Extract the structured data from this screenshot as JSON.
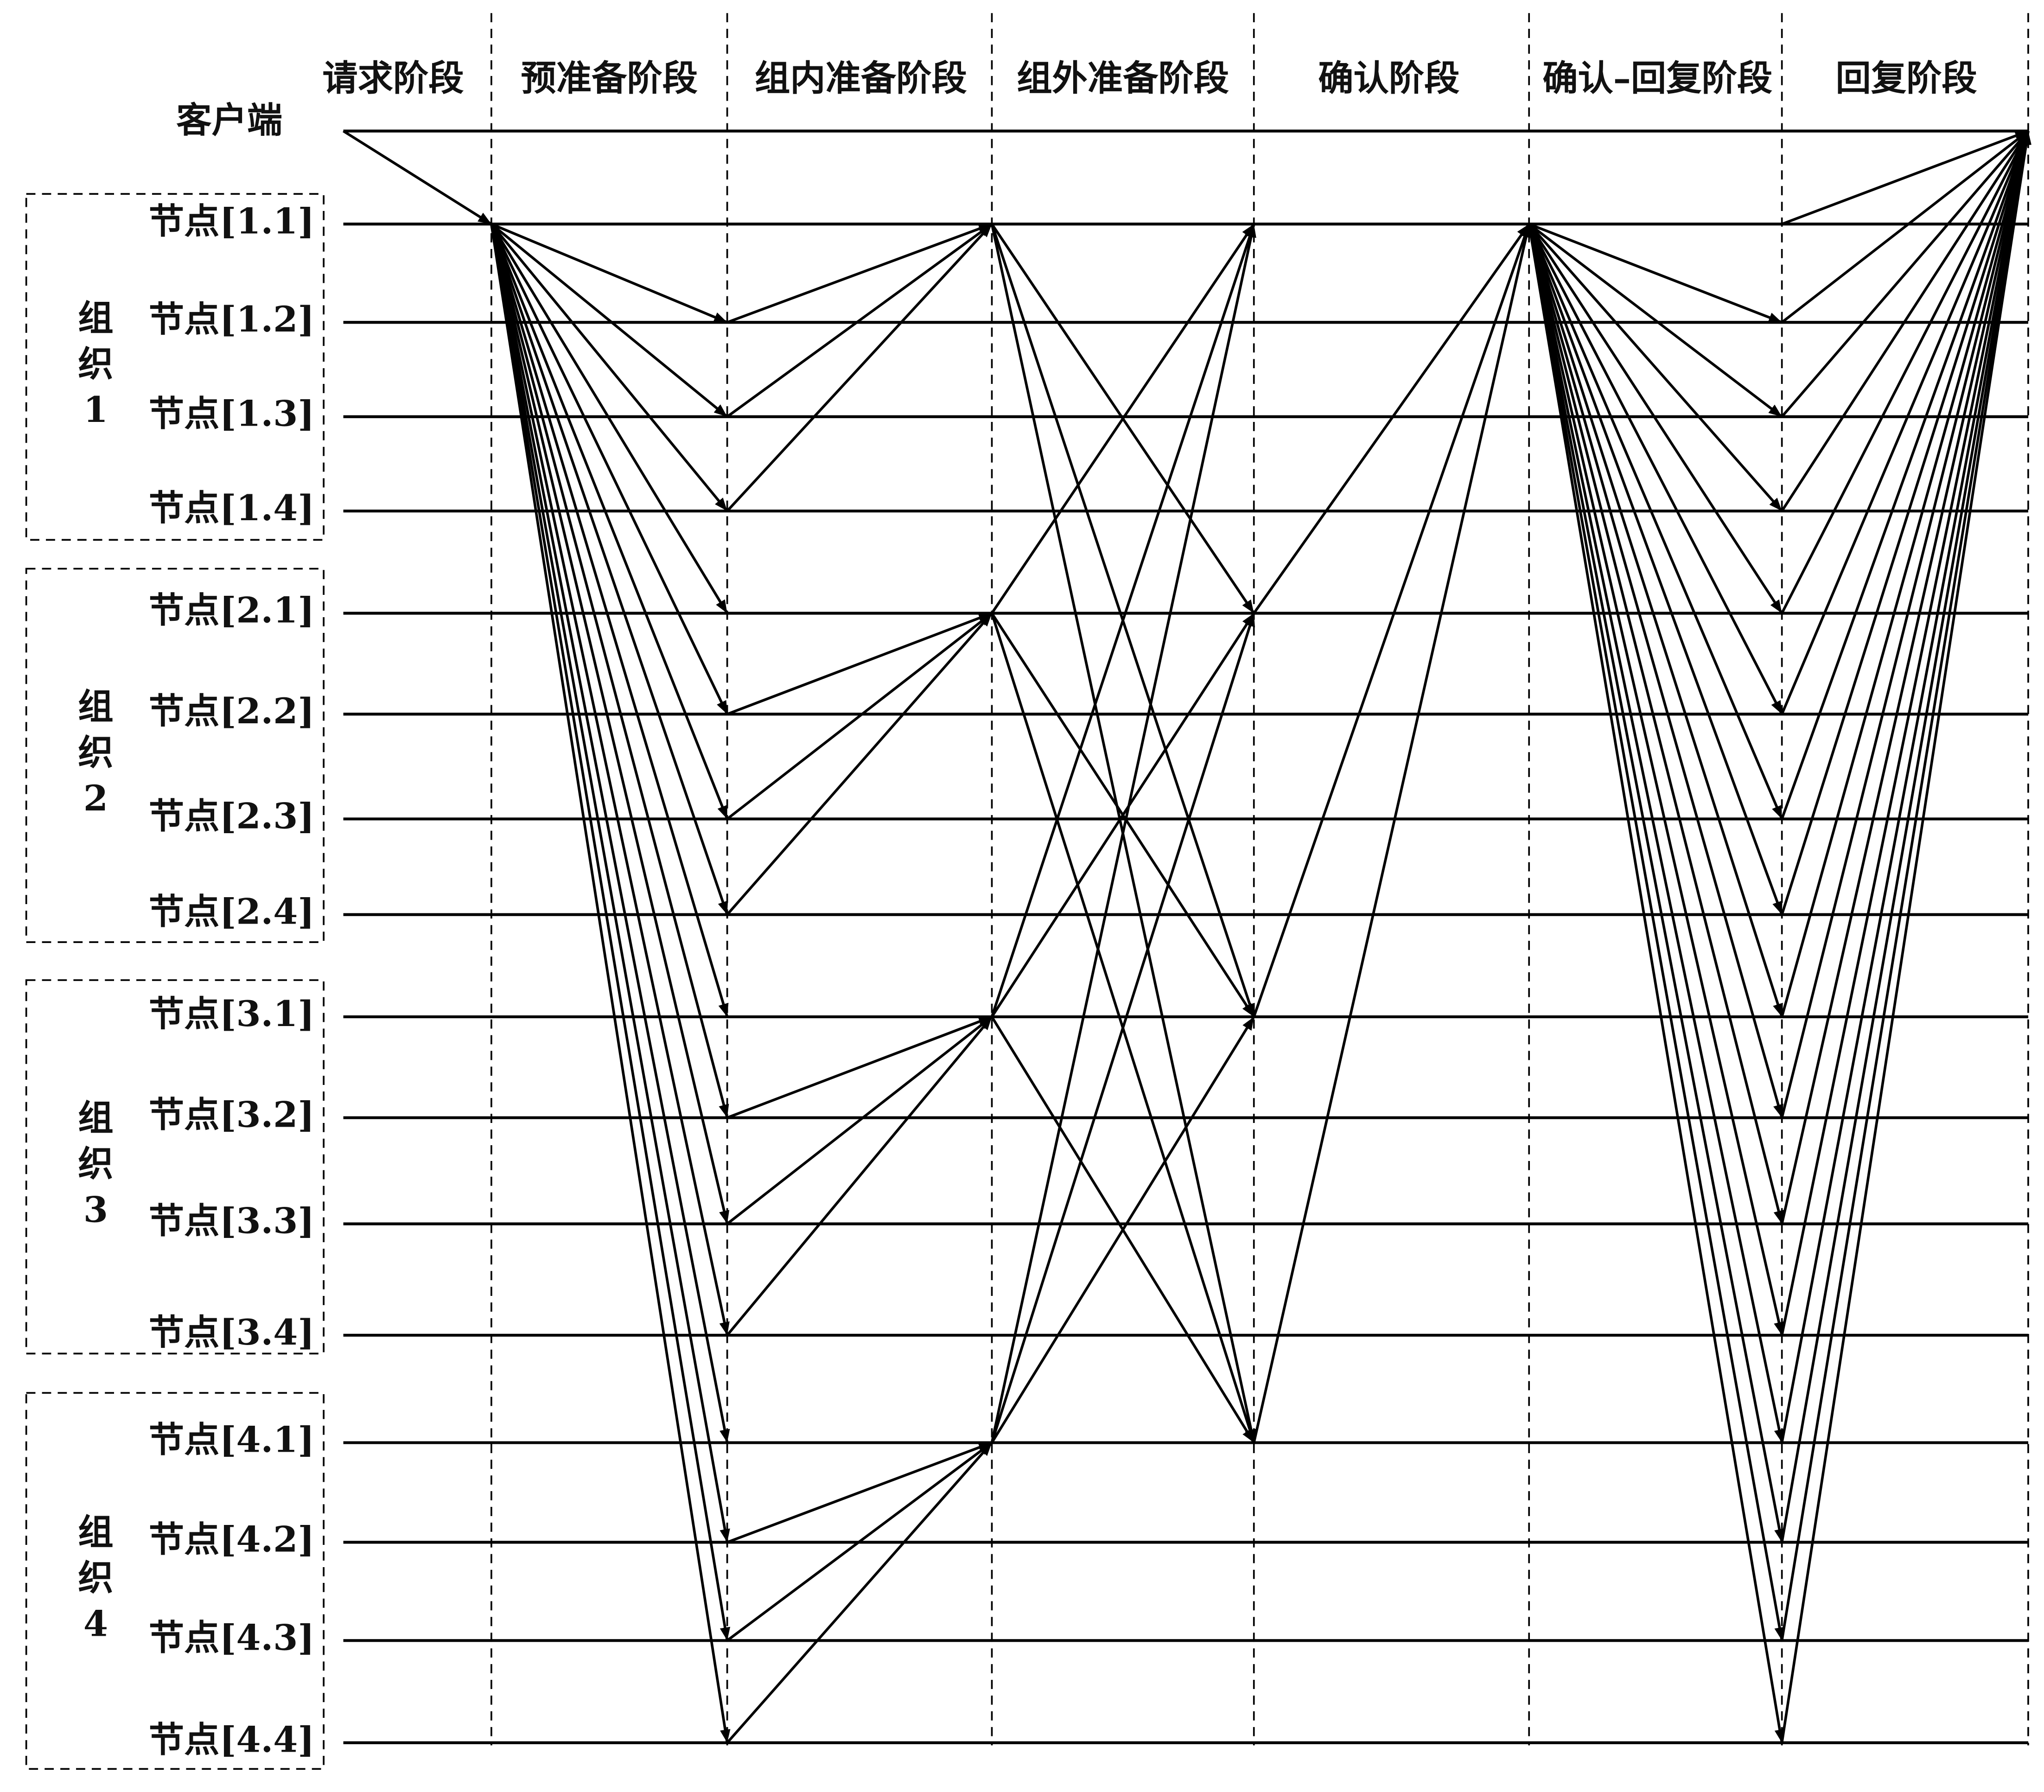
{
  "phases": [
    "请求阶段",
    "预准备阶段",
    "组内准备阶段",
    "组外准备阶段",
    "确认阶段",
    "确认–回复阶段",
    "回复阶段"
  ],
  "client": "客户端",
  "groups": [
    {
      "label": "组织1",
      "nodes": [
        "节点[1.1]",
        "节点[1.2]",
        "节点[1.3]",
        "节点[1.4]"
      ]
    },
    {
      "label": "组织2",
      "nodes": [
        "节点[2.1]",
        "节点[2.2]",
        "节点[2.3]",
        "节点[2.4]"
      ]
    },
    {
      "label": "组织3",
      "nodes": [
        "节点[3.1]",
        "节点[3.2]",
        "节点[3.3]",
        "节点[3.4]"
      ]
    },
    {
      "label": "组织4",
      "nodes": [
        "节点[4.1]",
        "节点[4.2]",
        "节点[4.3]",
        "节点[4.4]"
      ]
    }
  ]
}
